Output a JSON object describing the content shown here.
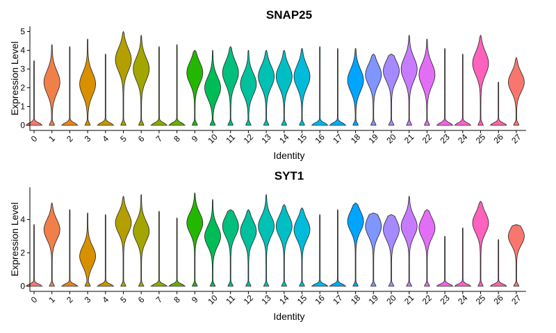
{
  "chart_data": [
    {
      "type": "violin",
      "title": "SNAP25",
      "xlabel": "Identity",
      "ylabel": "Expression Level",
      "ylim": [
        0,
        5.2
      ],
      "yticks": [
        0,
        1,
        2,
        3,
        4,
        5
      ],
      "categories": [
        "0",
        "1",
        "2",
        "3",
        "4",
        "5",
        "6",
        "7",
        "8",
        "9",
        "10",
        "11",
        "12",
        "13",
        "14",
        "15",
        "16",
        "17",
        "18",
        "19",
        "20",
        "21",
        "22",
        "23",
        "24",
        "25",
        "26",
        "27"
      ],
      "max": [
        3.45,
        4.3,
        4.2,
        4.6,
        3.8,
        5.0,
        4.8,
        4.2,
        4.3,
        4.0,
        4.0,
        4.2,
        4.0,
        4.0,
        4.0,
        4.1,
        4.2,
        4.1,
        4.1,
        3.8,
        3.8,
        4.8,
        4.6,
        4.1,
        3.8,
        4.8,
        2.3,
        3.6
      ],
      "median": [
        0,
        2.3,
        0,
        2.2,
        0,
        3.5,
        3.0,
        0,
        0,
        2.8,
        2.0,
        2.8,
        2.2,
        2.6,
        2.6,
        2.6,
        0,
        0,
        2.4,
        2.7,
        2.9,
        3.0,
        2.7,
        0,
        0,
        3.3,
        0,
        2.3
      ]
    },
    {
      "type": "violin",
      "title": "SYT1",
      "xlabel": "Identity",
      "ylabel": "Expression Level",
      "ylim": [
        0,
        5.9
      ],
      "yticks": [
        0,
        2,
        4
      ],
      "categories": [
        "0",
        "1",
        "2",
        "3",
        "4",
        "5",
        "6",
        "7",
        "8",
        "9",
        "10",
        "11",
        "12",
        "13",
        "14",
        "15",
        "16",
        "17",
        "18",
        "19",
        "20",
        "21",
        "22",
        "23",
        "24",
        "25",
        "26",
        "27"
      ],
      "max": [
        3.7,
        5.0,
        4.6,
        4.4,
        4.3,
        5.4,
        5.5,
        4.5,
        4.1,
        5.6,
        5.2,
        4.6,
        4.6,
        5.5,
        4.9,
        4.7,
        4.3,
        4.6,
        5.0,
        4.4,
        4.3,
        5.4,
        4.6,
        3.0,
        3.5,
        5.1,
        2.8,
        3.7
      ],
      "median": [
        0,
        3.4,
        0,
        1.8,
        0,
        3.8,
        3.3,
        0,
        0,
        3.8,
        3.0,
        3.6,
        3.3,
        3.6,
        3.6,
        3.4,
        0,
        0,
        3.9,
        3.6,
        3.4,
        3.6,
        3.5,
        0,
        0,
        3.8,
        0,
        3.0
      ]
    }
  ],
  "colors": [
    "#F8766D",
    "#F07F4A",
    "#E7851E",
    "#D89000",
    "#C69900",
    "#B39F00",
    "#A3A500",
    "#8AAB00",
    "#64B200",
    "#24B700",
    "#00BC56",
    "#00BF7D",
    "#00C19C",
    "#00C1B4",
    "#00BFC4",
    "#00BBDA",
    "#00B6EB",
    "#00ADFA",
    "#00A5FF",
    "#7F96FF",
    "#A58AFF",
    "#C77CFF",
    "#E36EF6",
    "#F564E3",
    "#FD61D1",
    "#FF62BC",
    "#FF67A4",
    "#F8766D"
  ]
}
